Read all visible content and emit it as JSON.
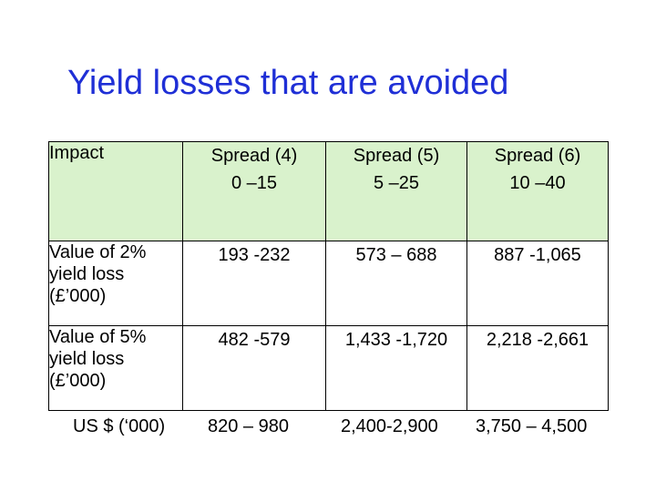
{
  "title": "Yield losses that are avoided",
  "table": {
    "header": {
      "impact_label": "Impact",
      "columns": [
        {
          "name": "Spread (4)",
          "range": "0 –15"
        },
        {
          "name": "Spread (5)",
          "range": "5 –25"
        },
        {
          "name": "Spread (6)",
          "range": "10 –40"
        }
      ]
    },
    "rows": [
      {
        "label_lines": [
          "Value of 2%",
          "yield loss",
          "(£’000)"
        ],
        "values": [
          "193 -232",
          "573 – 688",
          "887 -1,065"
        ]
      },
      {
        "label_lines": [
          "Value of 5%",
          "yield loss",
          "(£’000)"
        ],
        "values": [
          "482 -579",
          "1,433 -1,720",
          "2,218 -2,661"
        ]
      }
    ]
  },
  "footer": {
    "label": "US $ (‘000)",
    "values": [
      "820 – 980",
      "2,400-2,900",
      "3,750 – 4,500"
    ]
  },
  "colors": {
    "title": "#1f2fd6",
    "header_fill": "#d9f2cc"
  }
}
